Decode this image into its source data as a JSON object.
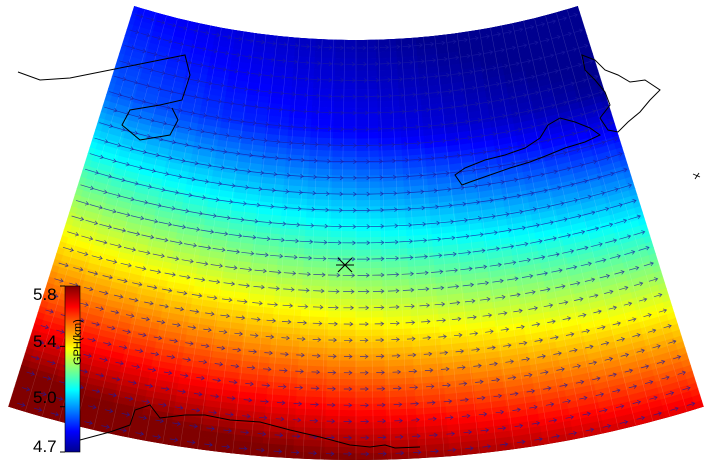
{
  "map": {
    "field": "geopotential height",
    "wind_vectors": "shown",
    "center_marker": "x-mark",
    "coastlines": [
      "southeast-australia-coast",
      "new-zealand-north-island",
      "new-zealand-south-island",
      "antarctica-coast"
    ]
  },
  "colorbar": {
    "title": "GPH(km)",
    "min": 4.7,
    "max": 5.8,
    "ticks": [
      "5.8",
      "5.4",
      "5.0",
      "4.7"
    ],
    "tick_values": [
      5.8,
      5.4,
      5.0,
      4.7
    ],
    "colormap": "jet",
    "colors": [
      "#00008f",
      "#0000ff",
      "#0080ff",
      "#00ffff",
      "#80ff80",
      "#ffff00",
      "#ff8000",
      "#ff0000",
      "#800000"
    ]
  }
}
